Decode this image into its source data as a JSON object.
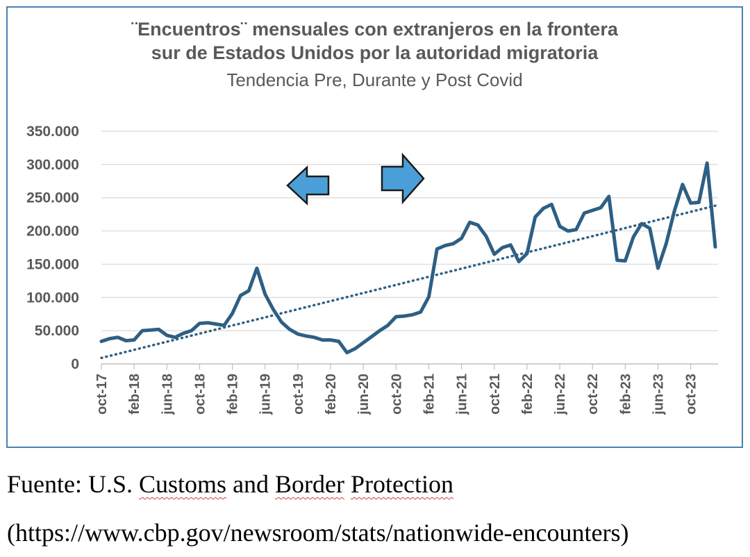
{
  "chart_data": {
    "type": "line",
    "title": "¨Encuentros¨ mensuales con extranjeros en la frontera sur de Estados Unidos por la autoridad migratoria",
    "title_lines": [
      "¨Encuentros¨ mensuales con extranjeros en la frontera",
      "sur de Estados Unidos por la autoridad migratoria"
    ],
    "subtitle": "Tendencia Pre, Durante y Post Covid",
    "ylim": [
      0,
      350000
    ],
    "yticks": [
      0,
      50000,
      100000,
      150000,
      200000,
      250000,
      300000,
      350000
    ],
    "ytick_labels": [
      "0",
      "50.000",
      "100.000",
      "150.000",
      "200.000",
      "250.000",
      "300.000",
      "350.000"
    ],
    "xtick_labels": [
      "oct-17",
      "feb-18",
      "jun-18",
      "oct-18",
      "feb-19",
      "jun-19",
      "oct-19",
      "feb-20",
      "jun-20",
      "oct-20",
      "feb-21",
      "jun-21",
      "oct-21",
      "feb-22",
      "jun-22",
      "oct-22",
      "feb-23",
      "jun-23",
      "oct-23"
    ],
    "months": 76,
    "grid": true,
    "series": [
      {
        "color": "#2e5f84",
        "values": [
          34000,
          38000,
          40000,
          35000,
          36000,
          50000,
          51000,
          52000,
          43000,
          40000,
          46000,
          50000,
          61000,
          62000,
          60000,
          58000,
          76000,
          103000,
          110000,
          144000,
          105000,
          82000,
          63000,
          52000,
          45000,
          42000,
          40000,
          36000,
          36000,
          34000,
          17000,
          23000,
          32000,
          41000,
          50000,
          58000,
          71000,
          72000,
          74000,
          78000,
          101000,
          173000,
          178000,
          181000,
          189000,
          213000,
          209000,
          192000,
          165000,
          175000,
          179000,
          154000,
          166000,
          221000,
          234000,
          240000,
          207000,
          200000,
          202000,
          227000,
          231000,
          235000,
          252000,
          156000,
          155000,
          191000,
          211000,
          204000,
          144000,
          181000,
          230000,
          270000,
          242000,
          243000,
          302000,
          176000
        ]
      },
      {
        "color": "#2e5f84",
        "style": "dotted",
        "trend_from": 9000,
        "trend_to": 238000
      }
    ],
    "annotations": [
      {
        "icon": "left-arrow-icon",
        "color": "#4a9fd8"
      },
      {
        "icon": "right-arrow-icon",
        "color": "#4a9fd8"
      }
    ]
  },
  "caption": {
    "line1_prefix": "Fuente: U.S. ",
    "line1_word1": "Customs",
    "line1_mid": " and ",
    "line1_word2": "Border",
    "line1_space": " ",
    "line1_word3": "Protection",
    "line2": "(https://www.cbp.gov/newsroom/stats/nationwide-encounters)"
  }
}
